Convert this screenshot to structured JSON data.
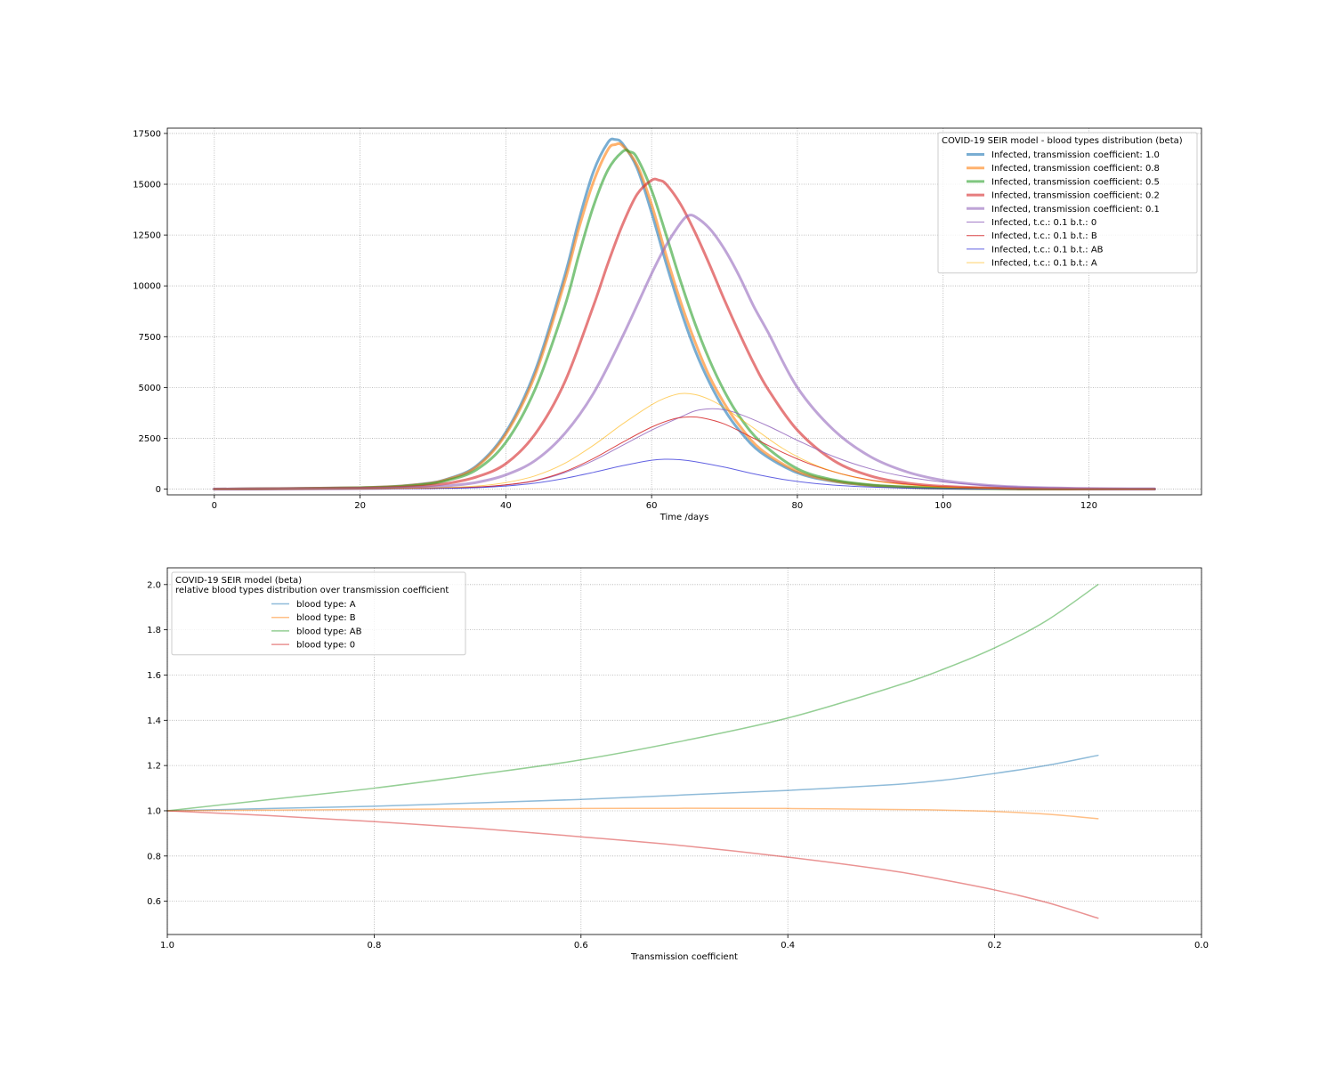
{
  "chart_data": [
    {
      "type": "line",
      "title": "",
      "xlabel": "Time /days",
      "ylabel": "",
      "xlim": [
        -6.45,
        135.45
      ],
      "ylim": [
        -283,
        17760
      ],
      "xticks": [
        0,
        20,
        40,
        60,
        80,
        100,
        120
      ],
      "yticks": [
        0,
        2500,
        5000,
        7500,
        10000,
        12500,
        15000,
        17500
      ],
      "grid": true,
      "legend": {
        "title": "COVID-19 SEIR model - blood types distribution (beta)",
        "placement": "upper right"
      },
      "series": [
        {
          "name": "Infected, transmission coefficient: 1.0",
          "color": "#1f77b4",
          "width": "thick",
          "x": [
            0,
            20,
            28,
            32,
            36,
            40,
            44,
            48,
            50,
            52,
            54,
            55,
            56,
            58,
            60,
            62,
            64,
            66,
            68,
            70,
            72,
            75,
            80,
            85,
            90,
            95,
            100,
            110,
            129
          ],
          "y": [
            0,
            70,
            230,
            500,
            1150,
            2800,
            5800,
            10400,
            13200,
            15600,
            17050,
            17200,
            17000,
            15800,
            13600,
            11100,
            8800,
            6800,
            5200,
            3900,
            2900,
            1800,
            800,
            380,
            180,
            90,
            40,
            10,
            0
          ]
        },
        {
          "name": "Infected, transmission coefficient: 0.8",
          "color": "#ff7f0e",
          "width": "thick",
          "x": [
            0,
            20,
            28,
            32,
            36,
            40,
            44,
            48,
            50,
            52,
            54,
            55,
            56,
            58,
            60,
            62,
            64,
            66,
            68,
            70,
            72,
            75,
            80,
            85,
            90,
            95,
            100,
            110,
            129
          ],
          "y": [
            0,
            70,
            220,
            480,
            1100,
            2700,
            5600,
            10100,
            12800,
            15100,
            16700,
            16950,
            16900,
            15950,
            14000,
            11500,
            9200,
            7200,
            5500,
            4200,
            3150,
            1950,
            870,
            400,
            190,
            95,
            45,
            10,
            0
          ]
        },
        {
          "name": "Infected, transmission coefficient: 0.5",
          "color": "#2ca02c",
          "width": "thick",
          "x": [
            0,
            20,
            28,
            32,
            36,
            40,
            44,
            48,
            50,
            52,
            54,
            56,
            57,
            58,
            60,
            62,
            64,
            66,
            68,
            70,
            72,
            75,
            80,
            85,
            90,
            95,
            100,
            110,
            129
          ],
          "y": [
            0,
            60,
            200,
            430,
            960,
            2300,
            4900,
            8900,
            11500,
            13900,
            15700,
            16600,
            16600,
            16300,
            14700,
            12500,
            10200,
            8100,
            6300,
            4800,
            3600,
            2300,
            1000,
            450,
            210,
            100,
            50,
            10,
            0
          ]
        },
        {
          "name": "Infected, transmission coefficient: 0.2",
          "color": "#d62728",
          "width": "thick",
          "x": [
            0,
            20,
            28,
            32,
            36,
            40,
            44,
            48,
            52,
            54,
            56,
            58,
            60,
            61,
            62,
            64,
            66,
            68,
            70,
            72,
            74,
            76,
            80,
            85,
            90,
            95,
            100,
            110,
            129
          ],
          "y": [
            0,
            40,
            130,
            280,
            600,
            1250,
            2700,
            5200,
            9000,
            11100,
            13000,
            14500,
            15200,
            15200,
            15000,
            14000,
            12600,
            11000,
            9300,
            7700,
            6200,
            4900,
            2900,
            1400,
            650,
            300,
            140,
            30,
            0
          ]
        },
        {
          "name": "Infected, transmission coefficient: 0.1",
          "color": "#9467bd",
          "width": "thick",
          "x": [
            0,
            20,
            28,
            32,
            36,
            40,
            44,
            48,
            52,
            56,
            60,
            62,
            64,
            65,
            66,
            68,
            70,
            72,
            74,
            76,
            80,
            85,
            90,
            95,
            100,
            105,
            110,
            120,
            129
          ],
          "y": [
            0,
            25,
            80,
            160,
            330,
            700,
            1400,
            2700,
            4700,
            7500,
            10600,
            12000,
            13100,
            13450,
            13400,
            12800,
            11800,
            10500,
            9000,
            7700,
            5000,
            2900,
            1600,
            850,
            430,
            220,
            110,
            30,
            10
          ]
        },
        {
          "name": "Infected, t.c.: 0.1 b.t.: 0",
          "color": "#9467bd",
          "width": "thin",
          "opacity": 0.85,
          "x": [
            0,
            20,
            30,
            36,
            40,
            44,
            48,
            52,
            56,
            60,
            64,
            66,
            68,
            70,
            72,
            76,
            80,
            85,
            90,
            95,
            100,
            105,
            110,
            120,
            129
          ],
          "y": [
            0,
            10,
            40,
            100,
            200,
            400,
            800,
            1400,
            2150,
            2900,
            3550,
            3850,
            3950,
            3900,
            3700,
            3100,
            2400,
            1600,
            1000,
            600,
            350,
            200,
            110,
            30,
            10
          ]
        },
        {
          "name": "Infected, t.c.: 0.1 b.t.: B",
          "color": "#d62728",
          "width": "thin",
          "opacity": 0.85,
          "x": [
            0,
            20,
            30,
            36,
            40,
            44,
            48,
            52,
            56,
            60,
            63,
            65,
            67,
            70,
            74,
            78,
            82,
            86,
            90,
            95,
            100,
            110,
            129
          ],
          "y": [
            0,
            10,
            40,
            100,
            210,
            420,
            850,
            1500,
            2300,
            3050,
            3450,
            3550,
            3500,
            3200,
            2500,
            1800,
            1200,
            750,
            450,
            240,
            120,
            30,
            0
          ]
        },
        {
          "name": "Infected, t.c.: 0.1 b.t.: AB",
          "color": "#1f1fd6",
          "width": "thin",
          "opacity": 0.7,
          "x": [
            0,
            20,
            30,
            36,
            40,
            44,
            48,
            52,
            56,
            60,
            62,
            64,
            66,
            70,
            74,
            78,
            82,
            86,
            90,
            95,
            100,
            110,
            129
          ],
          "y": [
            0,
            5,
            30,
            70,
            150,
            290,
            520,
            820,
            1150,
            1420,
            1470,
            1440,
            1350,
            1080,
            750,
            480,
            290,
            170,
            100,
            50,
            20,
            5,
            0
          ]
        },
        {
          "name": "Infected, t.c.: 0.1 b.t.: A",
          "color": "#ffb000",
          "width": "thin",
          "opacity": 0.6,
          "x": [
            0,
            20,
            30,
            36,
            40,
            44,
            48,
            52,
            56,
            60,
            62,
            64,
            66,
            68,
            70,
            74,
            78,
            82,
            86,
            90,
            95,
            100,
            110,
            129
          ],
          "y": [
            0,
            15,
            60,
            150,
            320,
            650,
            1250,
            2150,
            3200,
            4150,
            4500,
            4700,
            4650,
            4400,
            4000,
            3000,
            2000,
            1250,
            750,
            430,
            210,
            100,
            20,
            0
          ]
        }
      ]
    },
    {
      "type": "line",
      "title": "",
      "xlabel": "Transmission coefficient",
      "ylabel": "",
      "xlim": [
        1.0,
        0.0
      ],
      "ylim": [
        0.453,
        2.074
      ],
      "xticks": [
        1.0,
        0.8,
        0.6,
        0.4,
        0.2,
        0.0
      ],
      "xtick_labels": [
        "1.0",
        "0.8",
        "0.6",
        "0.4",
        "0.2",
        "0.0"
      ],
      "yticks": [
        0.6,
        0.8,
        1.0,
        1.2,
        1.4,
        1.6,
        1.8,
        2.0
      ],
      "ytick_labels": [
        "0.6",
        "0.8",
        "1.0",
        "1.2",
        "1.4",
        "1.6",
        "1.8",
        "2.0"
      ],
      "grid": true,
      "legend": {
        "title": "COVID-19 SEIR model (beta)\nrelative blood types distribution over transmission coefficient",
        "placement": "upper left"
      },
      "series": [
        {
          "name": "blood type: A",
          "color": "#1f77b4",
          "x": [
            1.0,
            0.9,
            0.8,
            0.7,
            0.6,
            0.5,
            0.4,
            0.3,
            0.25,
            0.2,
            0.15,
            0.1
          ],
          "y": [
            1.0,
            1.01,
            1.02,
            1.035,
            1.05,
            1.07,
            1.09,
            1.115,
            1.135,
            1.165,
            1.2,
            1.245
          ]
        },
        {
          "name": "blood type: B",
          "color": "#ff7f0e",
          "x": [
            1.0,
            0.9,
            0.8,
            0.7,
            0.6,
            0.5,
            0.4,
            0.3,
            0.25,
            0.2,
            0.15,
            0.1
          ],
          "y": [
            1.0,
            1.003,
            1.006,
            1.008,
            1.01,
            1.011,
            1.01,
            1.006,
            1.003,
            0.997,
            0.985,
            0.965
          ]
        },
        {
          "name": "blood type: AB",
          "color": "#2ca02c",
          "x": [
            1.0,
            0.9,
            0.8,
            0.7,
            0.6,
            0.5,
            0.4,
            0.3,
            0.25,
            0.2,
            0.15,
            0.1
          ],
          "y": [
            1.0,
            1.05,
            1.1,
            1.16,
            1.225,
            1.31,
            1.41,
            1.545,
            1.625,
            1.72,
            1.84,
            2.0
          ]
        },
        {
          "name": "blood type: 0",
          "color": "#d62728",
          "x": [
            1.0,
            0.9,
            0.8,
            0.7,
            0.6,
            0.5,
            0.4,
            0.3,
            0.25,
            0.2,
            0.15,
            0.1
          ],
          "y": [
            1.0,
            0.978,
            0.952,
            0.922,
            0.885,
            0.845,
            0.795,
            0.735,
            0.695,
            0.65,
            0.595,
            0.525
          ]
        }
      ]
    }
  ]
}
